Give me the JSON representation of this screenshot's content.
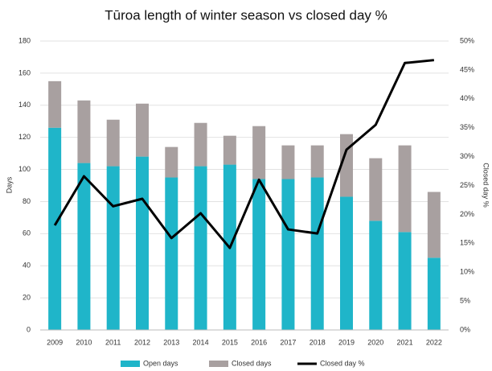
{
  "chart_data": {
    "type": "bar",
    "stacked": true,
    "title": "Tūroa length of winter season vs closed day %",
    "y_label": "Days",
    "y2_label": "Closed day %",
    "categories": [
      "2009",
      "2010",
      "2011",
      "2012",
      "2013",
      "2014",
      "2015",
      "2016",
      "2017",
      "2018",
      "2019",
      "2020",
      "2021",
      "2022"
    ],
    "series": [
      {
        "name": "Open days",
        "type": "bar",
        "color": "#1fb5c9",
        "values": [
          126,
          104,
          102,
          108,
          95,
          102,
          103,
          94,
          94,
          95,
          83,
          68,
          61,
          45
        ]
      },
      {
        "name": "Closed days",
        "type": "bar",
        "color": "#a8a0a0",
        "values": [
          29,
          39,
          29,
          33,
          19,
          27,
          18,
          33,
          21,
          20,
          39,
          39,
          54,
          41
        ]
      },
      {
        "name": "Closed day %",
        "type": "line",
        "axis": "y2",
        "color": "#000000",
        "values": [
          18.1,
          26.6,
          21.4,
          22.7,
          15.9,
          20.2,
          14.2,
          26.0,
          17.4,
          16.7,
          31.2,
          35.5,
          46.2,
          46.7
        ]
      }
    ],
    "ylim": [
      0,
      180
    ],
    "yticks": [
      0,
      20,
      40,
      60,
      80,
      100,
      120,
      140,
      160,
      180
    ],
    "y2lim": [
      0,
      50
    ],
    "y2ticks": [
      {
        "value": 0,
        "label": "0%"
      },
      {
        "value": 5,
        "label": "5%"
      },
      {
        "value": 10,
        "label": "10%"
      },
      {
        "value": 15,
        "label": "15%"
      },
      {
        "value": 20,
        "label": "20%"
      },
      {
        "value": 25,
        "label": "25%"
      },
      {
        "value": 30,
        "label": "30%"
      },
      {
        "value": 35,
        "label": "35%"
      },
      {
        "value": 40,
        "label": "40%"
      },
      {
        "value": 45,
        "label": "45%"
      },
      {
        "value": 50,
        "label": "50%"
      }
    ],
    "grid": true,
    "legend": "bottom"
  }
}
